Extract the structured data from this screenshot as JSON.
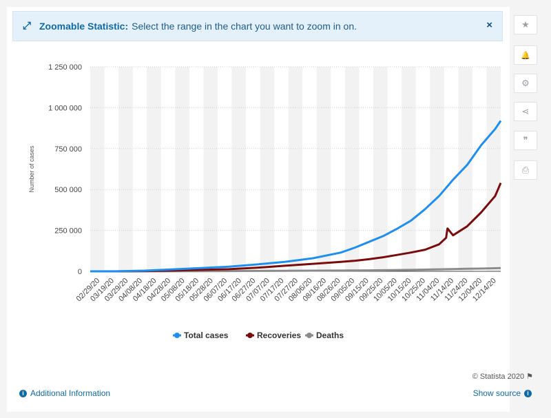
{
  "banner": {
    "title": "Zoomable Statistic:",
    "text": "Select the range in the chart you want to zoom in on.",
    "close_label": "×"
  },
  "sidebar_buttons": [
    {
      "icon": "star-icon",
      "glyph": "★"
    },
    {
      "icon": "bell-icon",
      "glyph": "🔔"
    },
    {
      "icon": "gear-icon",
      "glyph": "⚙"
    },
    {
      "icon": "share-icon",
      "glyph": "⋖"
    },
    {
      "icon": "quote-icon",
      "glyph": "❞"
    },
    {
      "icon": "print-icon",
      "glyph": "⎙"
    }
  ],
  "footer": {
    "additional_info": "Additional Information",
    "show_source": "Show source",
    "credit": "© Statista 2020"
  },
  "colors": {
    "total_cases": "#1f8ef1",
    "recoveries": "#7b0a0a",
    "deaths": "#8a8a8a",
    "band": "#f2f2f2"
  },
  "chart_data": {
    "type": "line",
    "title": "",
    "xlabel": "",
    "ylabel": "Number of cases",
    "ylim": [
      0,
      1250000
    ],
    "yticks": [
      "0",
      "250 000",
      "500 000",
      "750 000",
      "1 000 000",
      "1 250 000"
    ],
    "x_tick_labels": [
      "02/29/20",
      "03/19/20",
      "03/29/20",
      "04/08/20",
      "04/18/20",
      "04/28/20",
      "05/08/20",
      "05/18/20",
      "05/28/20",
      "06/07/20",
      "06/17/20",
      "06/27/20",
      "07/07/20",
      "07/17/20",
      "07/27/20",
      "08/06/20",
      "08/16/20",
      "08/26/20",
      "09/05/20",
      "09/15/20",
      "09/25/20",
      "10/05/20",
      "10/15/20",
      "10/25/20",
      "11/04/20",
      "11/14/20",
      "11/24/20",
      "12/04/20",
      "12/14/20"
    ],
    "x": [
      "02/29/20",
      "03/19/20",
      "04/08/20",
      "04/28/20",
      "05/18/20",
      "06/07/20",
      "06/27/20",
      "07/17/20",
      "08/06/20",
      "08/26/20",
      "09/05/20",
      "09/15/20",
      "09/25/20",
      "10/05/20",
      "10/15/20",
      "10/25/20",
      "11/04/20",
      "11/09/20",
      "11/10/20",
      "11/14/20",
      "11/24/20",
      "12/04/20",
      "12/14/20",
      "12/18/20"
    ],
    "series": [
      {
        "name": "Total cases",
        "values": [
          0,
          500,
          4000,
          12000,
          20000,
          28000,
          42000,
          58000,
          80000,
          115000,
          145000,
          180000,
          215000,
          260000,
          310000,
          380000,
          460000,
          510000,
          520000,
          560000,
          650000,
          770000,
          870000,
          920000
        ]
      },
      {
        "name": "Recoveries",
        "values": [
          0,
          100,
          1500,
          4500,
          9000,
          13000,
          22000,
          34000,
          46000,
          58000,
          65000,
          74000,
          86000,
          100000,
          115000,
          132000,
          165000,
          205000,
          262000,
          220000,
          275000,
          360000,
          460000,
          540000
        ]
      },
      {
        "name": "Deaths",
        "values": [
          0,
          50,
          200,
          600,
          1200,
          1800,
          2500,
          3200,
          4000,
          4800,
          5400,
          6000,
          6800,
          7800,
          9000,
          10500,
          12000,
          13000,
          13200,
          13800,
          15500,
          17000,
          19000,
          20000
        ]
      }
    ],
    "legend": "bottom-center",
    "grid": true
  }
}
